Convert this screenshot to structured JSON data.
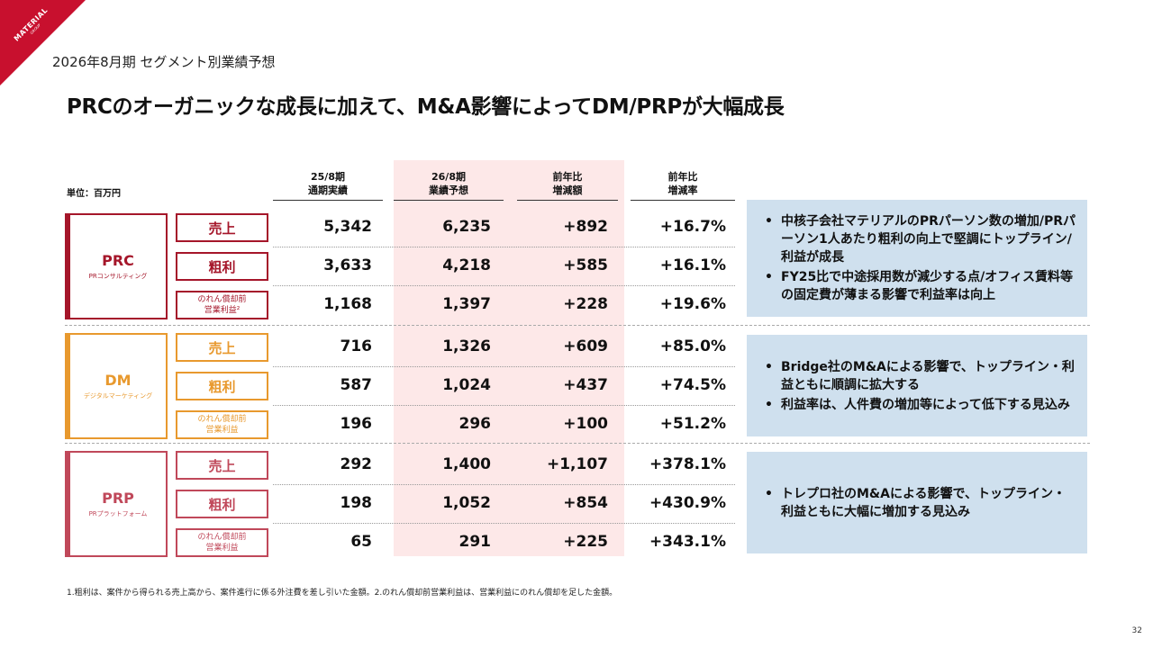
{
  "logo": {
    "line1": "MATERIAL",
    "line2": "GROUP"
  },
  "subtitle": "2026年8月期 セグメント別業績予想",
  "headline": "PRCのオーガニックな成長に加えて、M&A影響によってDM/PRPが大幅成長",
  "unit": "単位：百万円",
  "columns": [
    {
      "l1": "25/8期",
      "l2": "通期実績"
    },
    {
      "l1": "26/8期",
      "l2": "業績予想"
    },
    {
      "l1": "前年比",
      "l2": "増減額"
    },
    {
      "l1": "前年比",
      "l2": "増減率"
    }
  ],
  "colors": {
    "prc": "#a5162a",
    "dm": "#e8992e",
    "prp": "#c0485a",
    "shade": "#fde8e8",
    "note": "#cfe0ee"
  },
  "segments": [
    {
      "name": "PRC",
      "sub": "PRコンサルティング",
      "metrics": [
        {
          "l1": "売上",
          "l2": "",
          "v": [
            "5,342",
            "6,235",
            "+892",
            "+16.7%"
          ]
        },
        {
          "l1": "粗利",
          "l2": "",
          "v": [
            "3,633",
            "4,218",
            "+585",
            "+16.1%"
          ]
        },
        {
          "l1": "のれん償却前",
          "l2": "営業利益²",
          "v": [
            "1,168",
            "1,397",
            "+228",
            "+19.6%"
          ]
        }
      ],
      "notes": [
        "中核子会社マテリアルのPRパーソン数の増加/PRパーソン1人あたり粗利の向上で堅調にトップライン/利益が成長",
        "FY25比で中途採用数が減少する点/オフィス賃料等の固定費が薄まる影響で利益率は向上"
      ]
    },
    {
      "name": "DM",
      "sub": "デジタルマーケティング",
      "metrics": [
        {
          "l1": "売上",
          "l2": "",
          "v": [
            "716",
            "1,326",
            "+609",
            "+85.0%"
          ]
        },
        {
          "l1": "粗利",
          "l2": "",
          "v": [
            "587",
            "1,024",
            "+437",
            "+74.5%"
          ]
        },
        {
          "l1": "のれん償却前",
          "l2": "営業利益",
          "v": [
            "196",
            "296",
            "+100",
            "+51.2%"
          ]
        }
      ],
      "notes": [
        "Bridge社のM&Aによる影響で、トップライン・利益ともに順調に拡大する",
        "利益率は、人件費の増加等によって低下する見込み"
      ]
    },
    {
      "name": "PRP",
      "sub": "PRプラットフォーム",
      "metrics": [
        {
          "l1": "売上",
          "l2": "",
          "v": [
            "292",
            "1,400",
            "+1,107",
            "+378.1%"
          ]
        },
        {
          "l1": "粗利",
          "l2": "",
          "v": [
            "198",
            "1,052",
            "+854",
            "+430.9%"
          ]
        },
        {
          "l1": "のれん償却前",
          "l2": "営業利益",
          "v": [
            "65",
            "291",
            "+225",
            "+343.1%"
          ]
        }
      ],
      "notes": [
        "トレプロ社のM&Aによる影響で、トップライン・利益ともに大幅に増加する見込み"
      ]
    }
  ],
  "footnote": "1.粗利は、案件から得られる売上高から、案件進行に係る外注費を差し引いた金額。2.のれん償却前営業利益は、営業利益にのれん償却を足した金額。",
  "page_number": "32"
}
